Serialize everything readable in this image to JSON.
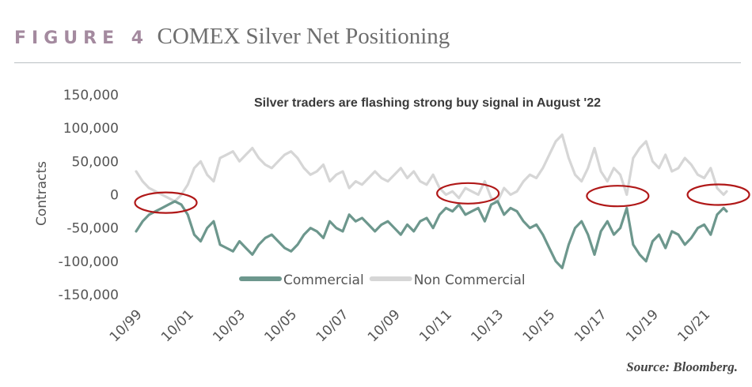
{
  "header": {
    "figure_label": "FIGURE 4",
    "title": "COMEX Silver Net Positioning"
  },
  "source": "Source: Bloomberg.",
  "colors": {
    "figure_label": "#a48a9f",
    "commercial": "#6d978d",
    "non_commercial": "#d6d6d6",
    "highlight_circle": "#b01818"
  },
  "chart_data": {
    "type": "line",
    "title": "Silver traders are flashing strong buy signal in August '22",
    "ylabel": "Contracts",
    "xlabel": "",
    "ylim": [
      -150000,
      150000
    ],
    "xlim": [
      1999.75,
      2022.62
    ],
    "y_ticks": [
      150000,
      100000,
      50000,
      0,
      -50000,
      -100000,
      -150000
    ],
    "y_tick_labels": [
      "150,000",
      "100,000",
      "50,000",
      "0",
      "-50,000",
      "-100,000",
      "-150,000"
    ],
    "x_ticks": [
      1999.75,
      2001.75,
      2003.75,
      2005.75,
      2007.75,
      2009.75,
      2011.75,
      2013.75,
      2015.75,
      2017.75,
      2019.75,
      2021.75
    ],
    "x_tick_labels": [
      "10/99",
      "10/01",
      "10/03",
      "10/05",
      "10/07",
      "10/09",
      "10/11",
      "10/13",
      "10/15",
      "10/17",
      "10/19",
      "10/21"
    ],
    "grid": false,
    "legend_position": "bottom-center",
    "series": [
      {
        "name": "Commercial",
        "color": "#6d978d",
        "x": [
          1999.75,
          2000.0,
          2000.25,
          2000.5,
          2000.75,
          2001.0,
          2001.25,
          2001.5,
          2001.75,
          2002.0,
          2002.25,
          2002.5,
          2002.75,
          2003.0,
          2003.25,
          2003.5,
          2003.75,
          2004.0,
          2004.25,
          2004.5,
          2004.75,
          2005.0,
          2005.25,
          2005.5,
          2005.75,
          2006.0,
          2006.25,
          2006.5,
          2006.75,
          2007.0,
          2007.25,
          2007.5,
          2007.75,
          2008.0,
          2008.25,
          2008.5,
          2008.75,
          2009.0,
          2009.25,
          2009.5,
          2009.75,
          2010.0,
          2010.25,
          2010.5,
          2010.75,
          2011.0,
          2011.25,
          2011.5,
          2011.75,
          2012.0,
          2012.25,
          2012.5,
          2012.75,
          2013.0,
          2013.25,
          2013.5,
          2013.75,
          2014.0,
          2014.25,
          2014.5,
          2014.75,
          2015.0,
          2015.25,
          2015.5,
          2015.75,
          2016.0,
          2016.25,
          2016.5,
          2016.75,
          2017.0,
          2017.25,
          2017.5,
          2017.75,
          2018.0,
          2018.25,
          2018.5,
          2018.75,
          2019.0,
          2019.25,
          2019.5,
          2019.75,
          2020.0,
          2020.25,
          2020.5,
          2020.75,
          2021.0,
          2021.25,
          2021.5,
          2021.75,
          2022.0,
          2022.25,
          2022.5,
          2022.62
        ],
        "values": [
          -55000,
          -40000,
          -30000,
          -25000,
          -20000,
          -15000,
          -10000,
          -15000,
          -30000,
          -60000,
          -70000,
          -50000,
          -40000,
          -75000,
          -80000,
          -85000,
          -70000,
          -80000,
          -90000,
          -75000,
          -65000,
          -60000,
          -70000,
          -80000,
          -85000,
          -75000,
          -60000,
          -50000,
          -55000,
          -65000,
          -40000,
          -50000,
          -55000,
          -30000,
          -40000,
          -35000,
          -45000,
          -55000,
          -45000,
          -40000,
          -50000,
          -60000,
          -45000,
          -55000,
          -40000,
          -35000,
          -50000,
          -30000,
          -20000,
          -25000,
          -15000,
          -30000,
          -25000,
          -20000,
          -40000,
          -15000,
          -10000,
          -30000,
          -20000,
          -25000,
          -40000,
          -50000,
          -45000,
          -60000,
          -80000,
          -100000,
          -110000,
          -75000,
          -50000,
          -40000,
          -60000,
          -90000,
          -55000,
          -40000,
          -60000,
          -50000,
          -20000,
          -75000,
          -90000,
          -100000,
          -70000,
          -60000,
          -80000,
          -55000,
          -60000,
          -75000,
          -65000,
          -50000,
          -45000,
          -60000,
          -30000,
          -20000,
          -25000
        ]
      },
      {
        "name": "Non Commercial",
        "color": "#d6d6d6",
        "x": [
          1999.75,
          2000.0,
          2000.25,
          2000.5,
          2000.75,
          2001.0,
          2001.25,
          2001.5,
          2001.75,
          2002.0,
          2002.25,
          2002.5,
          2002.75,
          2003.0,
          2003.25,
          2003.5,
          2003.75,
          2004.0,
          2004.25,
          2004.5,
          2004.75,
          2005.0,
          2005.25,
          2005.5,
          2005.75,
          2006.0,
          2006.25,
          2006.5,
          2006.75,
          2007.0,
          2007.25,
          2007.5,
          2007.75,
          2008.0,
          2008.25,
          2008.5,
          2008.75,
          2009.0,
          2009.25,
          2009.5,
          2009.75,
          2010.0,
          2010.25,
          2010.5,
          2010.75,
          2011.0,
          2011.25,
          2011.5,
          2011.75,
          2012.0,
          2012.25,
          2012.5,
          2012.75,
          2013.0,
          2013.25,
          2013.5,
          2013.75,
          2014.0,
          2014.25,
          2014.5,
          2014.75,
          2015.0,
          2015.25,
          2015.5,
          2015.75,
          2016.0,
          2016.25,
          2016.5,
          2016.75,
          2017.0,
          2017.25,
          2017.5,
          2017.75,
          2018.0,
          2018.25,
          2018.5,
          2018.75,
          2019.0,
          2019.25,
          2019.5,
          2019.75,
          2020.0,
          2020.25,
          2020.5,
          2020.75,
          2021.0,
          2021.25,
          2021.5,
          2021.75,
          2022.0,
          2022.25,
          2022.5,
          2022.62
        ],
        "values": [
          35000,
          20000,
          10000,
          5000,
          0,
          -5000,
          -10000,
          0,
          15000,
          40000,
          50000,
          30000,
          20000,
          55000,
          60000,
          65000,
          50000,
          60000,
          70000,
          55000,
          45000,
          40000,
          50000,
          60000,
          65000,
          55000,
          40000,
          30000,
          35000,
          45000,
          20000,
          30000,
          35000,
          10000,
          20000,
          15000,
          25000,
          35000,
          25000,
          20000,
          30000,
          40000,
          25000,
          35000,
          20000,
          15000,
          30000,
          10000,
          0,
          5000,
          -5000,
          10000,
          5000,
          0,
          20000,
          -5000,
          -10000,
          10000,
          0,
          5000,
          20000,
          30000,
          25000,
          40000,
          60000,
          80000,
          90000,
          55000,
          30000,
          20000,
          40000,
          70000,
          35000,
          20000,
          40000,
          30000,
          0,
          55000,
          70000,
          80000,
          50000,
          40000,
          60000,
          35000,
          40000,
          55000,
          45000,
          30000,
          25000,
          40000,
          10000,
          0,
          5000
        ]
      }
    ],
    "annotations": [
      {
        "type": "ellipse",
        "x": 2000.9,
        "y": -12000
      },
      {
        "type": "ellipse",
        "x": 2012.6,
        "y": 2000
      },
      {
        "type": "ellipse",
        "x": 2018.4,
        "y": -2000
      },
      {
        "type": "ellipse",
        "x": 2022.3,
        "y": 0
      }
    ]
  }
}
